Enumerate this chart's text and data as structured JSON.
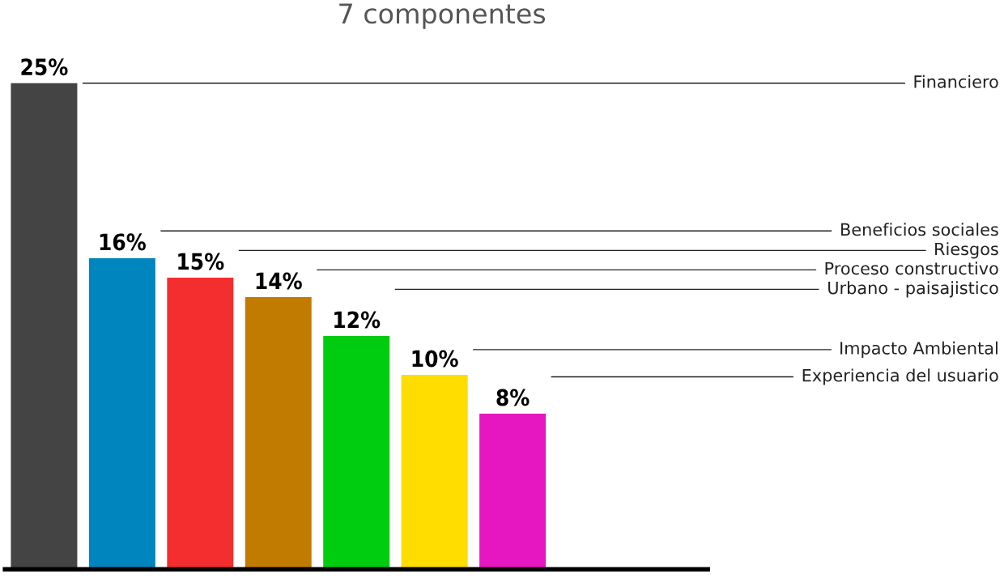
{
  "chart_data": {
    "type": "bar",
    "title": "7 componentes",
    "categories": [
      null,
      null,
      null,
      null,
      null,
      null,
      null
    ],
    "values": [
      25,
      16,
      15,
      14,
      12,
      10,
      8
    ],
    "value_labels": [
      "25%",
      "16%",
      "15%",
      "14%",
      "12%",
      "10%",
      "8%"
    ],
    "colors": [
      "#444444",
      "#0085be",
      "#f42e2e",
      "#c17c00",
      "#00cc10",
      "#ffdd00",
      "#e617c0"
    ],
    "ref_lines": [
      {
        "axis": "y",
        "value": 25,
        "label": "Financiero",
        "color": "#222222"
      },
      {
        "axis": "y",
        "value": 17.4,
        "label": "Beneficios sociales",
        "color": "#222222"
      },
      {
        "axis": "y",
        "value": 16.4,
        "label": "Riesgos",
        "color": "#222222"
      },
      {
        "axis": "y",
        "value": 15.4,
        "label": "Proceso constructivo",
        "color": "#222222"
      },
      {
        "axis": "y",
        "value": 14.4,
        "label": "Urbano - paisajistico",
        "color": "#222222"
      },
      {
        "axis": "y",
        "value": 11.3,
        "label": "Impacto Ambiental",
        "color": "#222222"
      },
      {
        "axis": "y",
        "value": 9.9,
        "label": "Experiencia del usuario",
        "color": "#222222"
      }
    ]
  }
}
